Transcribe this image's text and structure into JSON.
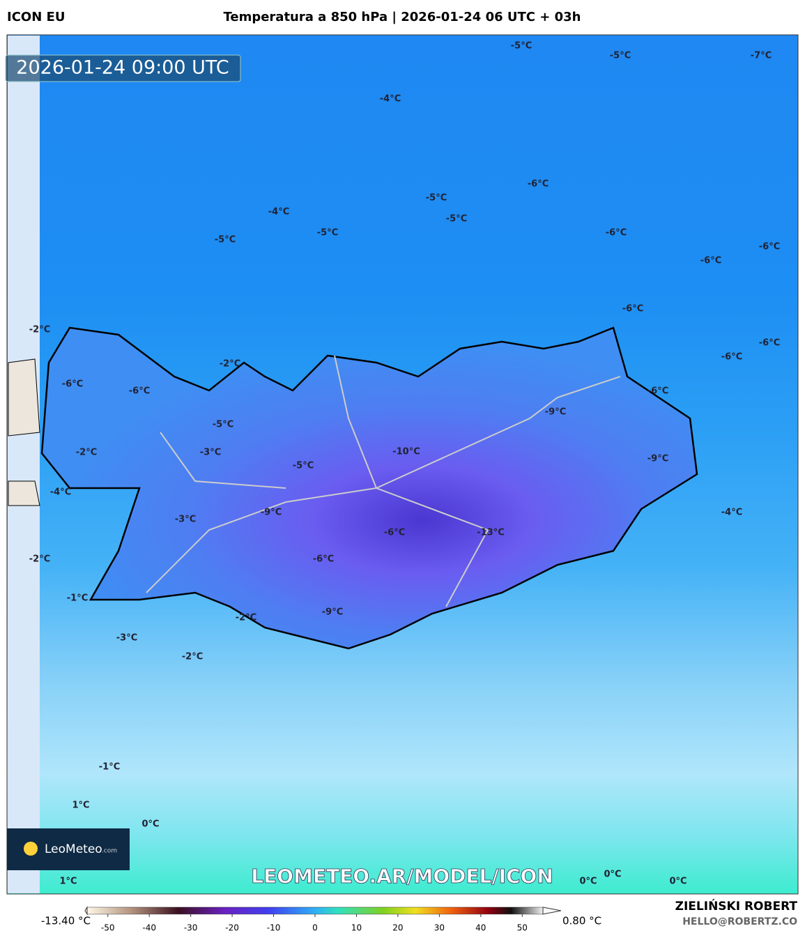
{
  "header": {
    "model": "ICON EU",
    "title": "Temperatura a 850 hPa | 2026-01-24 06 UTC + 03h"
  },
  "timestamp": "2026-01-24 09:00 UTC",
  "contour_labels": [
    "-5°C",
    "-5°C",
    "-7°C",
    "-4°C",
    "-6°C",
    "-5°C",
    "-4°C",
    "-5°C",
    "-5°C",
    "-6°C",
    "-5°C",
    "-6°C",
    "-6°C",
    "-6°C",
    "-2°C",
    "-6°C",
    "-2°C",
    "-6°C",
    "-6°C",
    "-6°C",
    "-6°C",
    "-9°C",
    "-5°C",
    "-10°C",
    "-2°C",
    "-3°C",
    "-9°C",
    "-5°C",
    "-4°C",
    "-9°C",
    "-4°C",
    "-3°C",
    "-6°C",
    "-13°C",
    "-2°C",
    "-6°C",
    "-1°C",
    "-9°C",
    "-2°C",
    "-3°C",
    "-2°C",
    "-1°C",
    "1°C",
    "0°C",
    "1°C",
    "0°C",
    "0°C",
    "0°C"
  ],
  "watermark": "LEOMETEO.AR/MODEL/ICON",
  "logo": {
    "name": "LeoMeteo",
    "suffix": ".com"
  },
  "colorbar": {
    "min_label": "-13.40 °C",
    "max_label": "0.80 °C",
    "lim": [
      -55,
      55
    ],
    "ticks": [
      -50,
      -40,
      -30,
      -20,
      -10,
      0,
      10,
      20,
      30,
      40,
      50
    ]
  },
  "footer": {
    "author": "ZIELIŃSKI ROBERT",
    "email": "HELLO@ROBERTZ.CO"
  }
}
